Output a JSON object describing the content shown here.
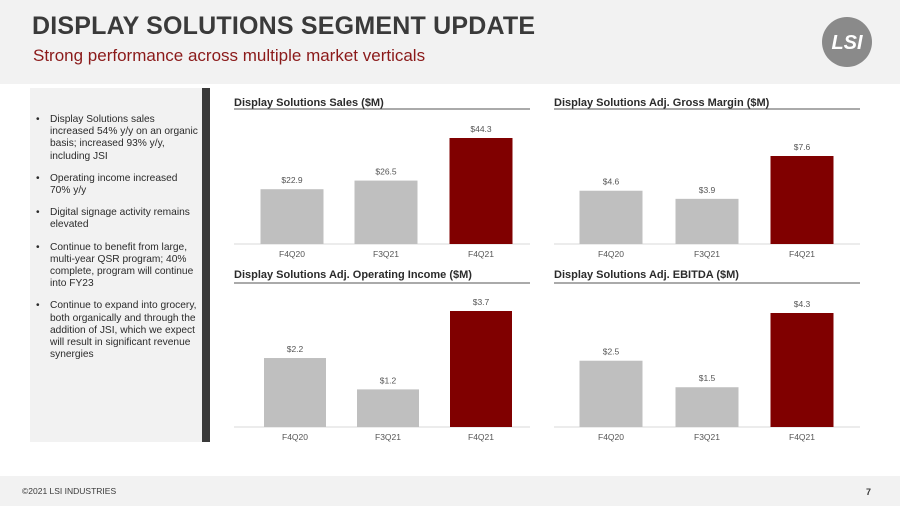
{
  "header": {
    "title": "DISPLAY SOLUTIONS SEGMENT UPDATE",
    "subtitle": "Strong performance across multiple market verticals",
    "logo_text": "LSI"
  },
  "bullets": [
    "Display Solutions sales increased 54% y/y on an organic basis; increased 93% y/y, including JSI",
    "Operating income increased 70% y/y",
    "Digital signage activity remains elevated",
    "Continue to benefit from large, multi-year QSR program; 40% complete, program will continue into FY23",
    "Continue to expand into grocery, both organically and through the addition of JSI, which we expect will result in significant revenue synergies"
  ],
  "chart_data": [
    {
      "type": "bar",
      "title": "Display Solutions Sales ($M)",
      "categories": [
        "F4Q20",
        "F3Q21",
        "F4Q21"
      ],
      "values": [
        22.9,
        26.5,
        44.3
      ],
      "labels": [
        "$22.9",
        "$26.5",
        "$44.3"
      ],
      "ylim": [
        0,
        44.3
      ],
      "colors": [
        "#bfbfbf",
        "#bfbfbf",
        "#800000"
      ]
    },
    {
      "type": "bar",
      "title": "Display Solutions Adj. Gross Margin ($M)",
      "categories": [
        "F4Q20",
        "F3Q21",
        "F4Q21"
      ],
      "values": [
        4.6,
        3.9,
        7.6
      ],
      "labels": [
        "$4.6",
        "$3.9",
        "$7.6"
      ],
      "ylim": [
        0,
        7.6
      ],
      "colors": [
        "#bfbfbf",
        "#bfbfbf",
        "#800000"
      ]
    },
    {
      "type": "bar",
      "title": "Display Solutions Adj. Operating Income ($M)",
      "categories": [
        "F4Q20",
        "F3Q21",
        "F4Q21"
      ],
      "values": [
        2.2,
        1.2,
        3.7
      ],
      "labels": [
        "$2.2",
        "$1.2",
        "$3.7"
      ],
      "ylim": [
        0,
        3.7
      ],
      "colors": [
        "#bfbfbf",
        "#bfbfbf",
        "#800000"
      ]
    },
    {
      "type": "bar",
      "title": "Display Solutions Adj. EBITDA ($M)",
      "categories": [
        "F4Q20",
        "F3Q21",
        "F4Q21"
      ],
      "values": [
        2.5,
        1.5,
        4.3
      ],
      "labels": [
        "$2.5",
        "$1.5",
        "$4.3"
      ],
      "ylim": [
        0,
        4.3
      ],
      "colors": [
        "#bfbfbf",
        "#bfbfbf",
        "#800000"
      ]
    }
  ],
  "footer": {
    "copyright": "©2021 LSI INDUSTRIES",
    "page_number": "7"
  },
  "colors": {
    "accent": "#800000",
    "subtitle": "#8b1a1a",
    "bar_gray": "#bfbfbf",
    "panel_bg": "#f2f2f2"
  }
}
